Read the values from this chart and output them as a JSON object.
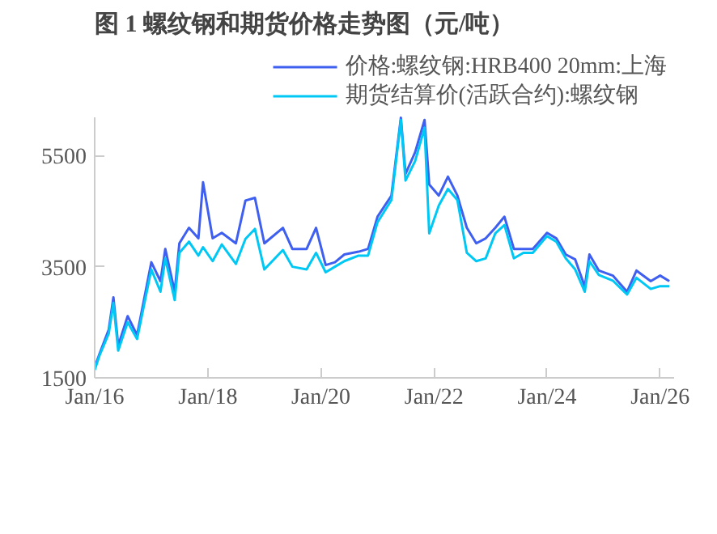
{
  "chart_data": {
    "type": "line",
    "title": "图 1 螺纹钢和期货价格走势图（元/吨）",
    "x": [
      "2016-01",
      "2016-02",
      "2016-04",
      "2016-05",
      "2016-06",
      "2016-08",
      "2016-10",
      "2017-01",
      "2017-03",
      "2017-04",
      "2017-06",
      "2017-07",
      "2017-09",
      "2017-11",
      "2017-12",
      "2018-02",
      "2018-04",
      "2018-07",
      "2018-09",
      "2018-11",
      "2019-01",
      "2019-05",
      "2019-07",
      "2019-10",
      "2019-12",
      "2020-02",
      "2020-04",
      "2020-06",
      "2020-09",
      "2020-11",
      "2021-01",
      "2021-04",
      "2021-06",
      "2021-07",
      "2021-09",
      "2021-11",
      "2021-12",
      "2022-02",
      "2022-04",
      "2022-06",
      "2022-08",
      "2022-10",
      "2022-12",
      "2023-02",
      "2023-04",
      "2023-06",
      "2023-08",
      "2023-10",
      "2024-01",
      "2024-03",
      "2024-05",
      "2024-07",
      "2024-09",
      "2024-10",
      "2024-12",
      "2025-03",
      "2025-06",
      "2025-08",
      "2025-11",
      "2026-01",
      "2026-03"
    ],
    "series": [
      {
        "name": "价格:螺纹钢:HRB400 20mm:上海",
        "color": "#3f5ff0",
        "values": [
          1690,
          1930,
          2370,
          2950,
          2080,
          2610,
          2270,
          3580,
          3240,
          3820,
          3050,
          3920,
          4200,
          4010,
          5020,
          4010,
          4110,
          3920,
          4690,
          4740,
          3920,
          4200,
          3820,
          3820,
          4200,
          3530,
          3580,
          3720,
          3770,
          3820,
          4400,
          4780,
          6180,
          5170,
          5560,
          6140,
          4980,
          4780,
          5120,
          4780,
          4200,
          3920,
          4010,
          4200,
          4400,
          3820,
          3820,
          3820,
          4110,
          4010,
          3720,
          3630,
          3140,
          3720,
          3430,
          3340,
          3050,
          3430,
          3240,
          3340,
          3240
        ]
      },
      {
        "name": "期货结算价(活跃合约):螺纹钢",
        "color": "#00c8f5",
        "values": [
          1640,
          1900,
          2300,
          2850,
          1990,
          2500,
          2200,
          3450,
          3050,
          3650,
          2900,
          3750,
          3950,
          3700,
          3850,
          3600,
          3900,
          3550,
          4000,
          4180,
          3450,
          3800,
          3500,
          3450,
          3750,
          3400,
          3500,
          3600,
          3700,
          3700,
          4300,
          4700,
          6140,
          5050,
          5400,
          6000,
          4100,
          4600,
          4900,
          4700,
          3750,
          3600,
          3650,
          4100,
          4250,
          3650,
          3750,
          3750,
          4050,
          3950,
          3650,
          3450,
          3050,
          3600,
          3350,
          3250,
          3000,
          3300,
          3100,
          3150,
          3150
        ]
      }
    ],
    "xlim": [
      "2016-01",
      "2026-04"
    ],
    "xticks": [
      {
        "value": "2016-01",
        "label": "Jan/16"
      },
      {
        "value": "2018-01",
        "label": "Jan/18"
      },
      {
        "value": "2020-01",
        "label": "Jan/20"
      },
      {
        "value": "2022-01",
        "label": "Jan/22"
      },
      {
        "value": "2024-01",
        "label": "Jan/24"
      },
      {
        "value": "2026-01",
        "label": "Jan/26"
      }
    ],
    "ylim": [
      1500,
      6200
    ],
    "yticks": [
      1500,
      3500,
      5500
    ],
    "grid": false,
    "legend": "top",
    "marker": "none",
    "line_style": "solid"
  }
}
